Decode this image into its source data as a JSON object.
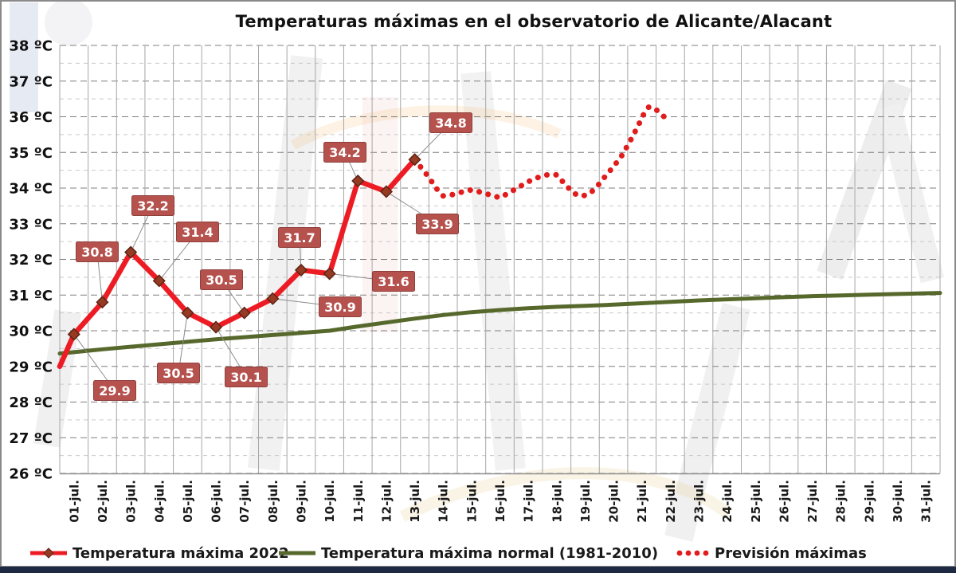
{
  "title": "Temperaturas máximas en el observatorio de Alicante/Alacant",
  "chart_data": {
    "type": "line",
    "title": "Temperaturas máximas en el observatorio de Alicante/Alacant",
    "x_categories": [
      "01-jul.",
      "02-jul.",
      "03-jul.",
      "04-jul.",
      "05-jul.",
      "06-jul.",
      "07-jul.",
      "08-jul.",
      "09-jul.",
      "10-jul.",
      "11-jul.",
      "12-jul.",
      "13-jul.",
      "14-jul.",
      "15-jul.",
      "16-jul.",
      "17-jul.",
      "18-jul.",
      "19-jul.",
      "20-jul.",
      "21-jul.",
      "22-jul.",
      "23-jul.",
      "24-jul.",
      "25-jul.",
      "26-jul.",
      "27-jul.",
      "28-jul.",
      "29-jul.",
      "30-jul.",
      "31-jul."
    ],
    "ylim": [
      26,
      38
    ],
    "y_unit": "ºC",
    "y_major_step": 1,
    "y_minor_step": 0.5,
    "grid": true,
    "legend_position": "bottom",
    "series": [
      {
        "name": "Temperatura máxima 2022",
        "style": "solid-line-diamond-markers",
        "days": [
          1,
          2,
          3,
          4,
          5,
          6,
          7,
          8,
          9,
          10,
          11,
          12,
          13
        ],
        "values": [
          29.9,
          30.8,
          32.2,
          31.4,
          30.5,
          30.1,
          30.5,
          30.9,
          31.7,
          31.6,
          34.2,
          33.9,
          34.8
        ],
        "edge_start_value": 29.0,
        "data_labels_shown": true
      },
      {
        "name": "Temperatura máxima normal (1981-2010)",
        "style": "solid-line",
        "days": [
          1,
          2,
          3,
          4,
          5,
          6,
          7,
          8,
          9,
          10,
          11,
          12,
          13,
          14,
          15,
          16,
          17,
          18,
          19,
          20,
          21,
          22,
          23,
          24,
          25,
          26,
          27,
          28,
          29,
          30,
          31
        ],
        "values": [
          29.4,
          29.48,
          29.55,
          29.62,
          29.69,
          29.76,
          29.82,
          29.88,
          29.94,
          30.0,
          30.12,
          30.23,
          30.34,
          30.44,
          30.52,
          30.58,
          30.63,
          30.67,
          30.7,
          30.73,
          30.77,
          30.81,
          30.85,
          30.88,
          30.91,
          30.94,
          30.97,
          30.99,
          31.01,
          31.03,
          31.05
        ],
        "edge_start_value": 29.36,
        "edge_end_value": 31.06
      },
      {
        "name": "Previsión máximas",
        "style": "dotted-line",
        "days": [
          14,
          15,
          16,
          17,
          18,
          19,
          20,
          21,
          22
        ],
        "values": [
          33.8,
          33.9,
          33.7,
          34.2,
          34.4,
          33.8,
          34.6,
          36.2,
          35.9
        ],
        "path_day_value": [
          [
            13,
            34.8
          ],
          [
            13.25,
            34.55
          ],
          [
            13.5,
            34.3
          ],
          [
            13.75,
            34.0
          ],
          [
            14,
            33.78
          ],
          [
            14.35,
            33.82
          ],
          [
            14.7,
            33.9
          ],
          [
            15,
            33.95
          ],
          [
            15.35,
            33.88
          ],
          [
            15.7,
            33.8
          ],
          [
            16,
            33.73
          ],
          [
            16.3,
            33.86
          ],
          [
            16.65,
            34.02
          ],
          [
            17,
            34.18
          ],
          [
            17.35,
            34.3
          ],
          [
            17.7,
            34.38
          ],
          [
            18,
            34.37
          ],
          [
            18.3,
            34.1
          ],
          [
            18.6,
            33.85
          ],
          [
            18.9,
            33.77
          ],
          [
            19.2,
            33.87
          ],
          [
            19.5,
            34.12
          ],
          [
            19.8,
            34.42
          ],
          [
            20,
            34.6
          ],
          [
            20.3,
            34.92
          ],
          [
            20.6,
            35.34
          ],
          [
            20.85,
            35.72
          ],
          [
            21.05,
            36.05
          ],
          [
            21.25,
            36.28
          ],
          [
            21.5,
            36.2
          ],
          [
            21.75,
            36.02
          ],
          [
            22,
            35.88
          ]
        ]
      }
    ]
  },
  "axes": {
    "y_labels": [
      "38 ºC",
      "37 ºC",
      "36 ºC",
      "35 ºC",
      "34 ºC",
      "33 ºC",
      "32 ºC",
      "31 ºC",
      "30 ºC",
      "29 ºC",
      "28 ºC",
      "27 ºC",
      "26 ºC"
    ]
  },
  "legend": {
    "items": [
      {
        "label": "Temperatura máxima 2022",
        "swatch": "red-line-diamond"
      },
      {
        "label": "Temperatura máxima normal (1981-2010)",
        "swatch": "green-line"
      },
      {
        "label": "Previsión máximas",
        "swatch": "red-dots"
      }
    ]
  },
  "colors": {
    "series_2022_red": "#ED1C24",
    "forecast_red": "#E11C1C",
    "normal_green": "#57682C",
    "marker_fill": "#963A23",
    "marker_stroke": "#5B2314",
    "label_box_bg": "#B5524E",
    "label_box_border": "#8F3F3B",
    "label_text": "#FFFFFF",
    "grid_major": "#7F7F7F",
    "grid_minor": "#C9C9C9",
    "grid_vertical": "#A6A6A6",
    "leader_line": "#8C8C8C",
    "axis_text": "#111111",
    "bottom_bar": "#1E2A44"
  }
}
